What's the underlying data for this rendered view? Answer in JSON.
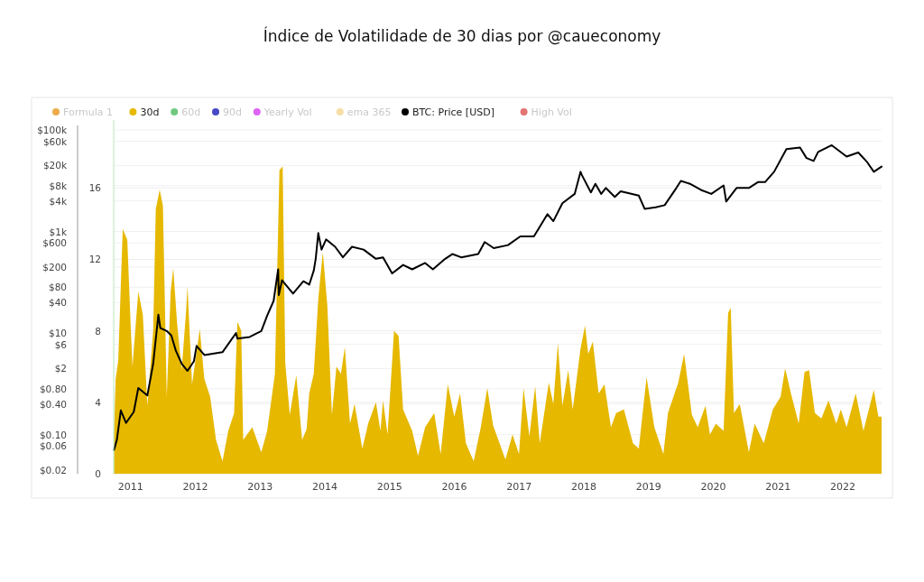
{
  "chart_data": {
    "type": "area",
    "title": "Índice de Volatilidade de 30 dias por @caueconomy",
    "xlim": [
      2010.74,
      2022.6
    ],
    "xticks": [
      2011,
      2012,
      2013,
      2014,
      2015,
      2016,
      2017,
      2018,
      2019,
      2020,
      2021,
      2022
    ],
    "ylim": [
      0,
      19.8
    ],
    "yticks": [
      0,
      4,
      8,
      12,
      16
    ],
    "y2lim": [
      0.017,
      157000
    ],
    "log": "y2",
    "y2ticks": [
      {
        "value": 0.02,
        "label": "$0.02"
      },
      {
        "value": 0.06,
        "label": "$0.06"
      },
      {
        "value": 0.1,
        "label": "$0.10"
      },
      {
        "value": 0.4,
        "label": "$0.40"
      },
      {
        "value": 0.8,
        "label": "$0.80"
      },
      {
        "value": 2,
        "label": "$2"
      },
      {
        "value": 6,
        "label": "$6"
      },
      {
        "value": 10,
        "label": "$10"
      },
      {
        "value": 40,
        "label": "$40"
      },
      {
        "value": 80,
        "label": "$80"
      },
      {
        "value": 200,
        "label": "$200"
      },
      {
        "value": 600,
        "label": "$600"
      },
      {
        "value": 1000,
        "label": "$1k"
      },
      {
        "value": 4000,
        "label": "$4k"
      },
      {
        "value": 8000,
        "label": "$8k"
      },
      {
        "value": 20000,
        "label": "$20k"
      },
      {
        "value": 60000,
        "label": "$60k"
      },
      {
        "value": 100000,
        "label": "$100k"
      }
    ],
    "grid": "y",
    "legend": "top left",
    "series": [
      {
        "name": "Formula 1",
        "color": "#e8961e"
      },
      {
        "name": "30d",
        "color": "#e6b800",
        "x": [
          2010.745,
          2010.77,
          2010.81,
          2010.88,
          2010.95,
          2011.0,
          2011.03,
          2011.12,
          2011.19,
          2011.26,
          2011.35,
          2011.39,
          2011.45,
          2011.5,
          2011.56,
          2011.62,
          2011.66,
          2011.72,
          2011.79,
          2011.86,
          2011.88,
          2011.95,
          2012.07,
          2012.14,
          2012.23,
          2012.32,
          2012.42,
          2012.51,
          2012.6,
          2012.65,
          2012.71,
          2012.74,
          2012.88,
          2013.02,
          2013.11,
          2013.23,
          2013.3,
          2013.35,
          2013.39,
          2013.46,
          2013.56,
          2013.65,
          2013.72,
          2013.76,
          2013.83,
          2013.9,
          2013.97,
          2014.04,
          2014.11,
          2014.18,
          2014.25,
          2014.31,
          2014.39,
          2014.46,
          2014.58,
          2014.67,
          2014.79,
          2014.86,
          2014.9,
          2014.97,
          2015.07,
          2015.14,
          2015.21,
          2015.35,
          2015.44,
          2015.55,
          2015.69,
          2015.79,
          2015.9,
          2016.0,
          2016.09,
          2016.18,
          2016.3,
          2016.41,
          2016.51,
          2016.6,
          2016.79,
          2016.9,
          2017.0,
          2017.07,
          2017.16,
          2017.25,
          2017.32,
          2017.46,
          2017.53,
          2017.6,
          2017.67,
          2017.76,
          2017.83,
          2017.95,
          2018.02,
          2018.07,
          2018.14,
          2018.23,
          2018.32,
          2018.42,
          2018.5,
          2018.62,
          2018.76,
          2018.85,
          2018.97,
          2019.09,
          2019.23,
          2019.3,
          2019.46,
          2019.55,
          2019.67,
          2019.76,
          2019.88,
          2019.95,
          2020.04,
          2020.16,
          2020.23,
          2020.27,
          2020.32,
          2020.41,
          2020.55,
          2020.64,
          2020.78,
          2020.92,
          2021.04,
          2021.11,
          2021.2,
          2021.32,
          2021.41,
          2021.48,
          2021.57,
          2021.67,
          2021.78,
          2021.9,
          2021.97,
          2022.06,
          2022.2,
          2022.32,
          2022.48,
          2022.55,
          2022.6
        ],
        "values": [
          2.2,
          5.3,
          6.3,
          13.7,
          13.1,
          8.5,
          6.0,
          10.2,
          8.9,
          3.8,
          8.0,
          14.8,
          15.9,
          15.0,
          4.3,
          10.2,
          11.5,
          8.4,
          5.8,
          9.2,
          10.5,
          5.0,
          8.1,
          5.3,
          4.3,
          1.9,
          0.7,
          2.4,
          3.4,
          8.5,
          8.0,
          1.9,
          2.6,
          1.2,
          2.4,
          5.6,
          17.0,
          17.2,
          6.2,
          3.3,
          5.5,
          1.9,
          2.5,
          4.5,
          5.6,
          9.8,
          12.4,
          9.4,
          3.3,
          6.0,
          5.6,
          7.1,
          2.8,
          3.9,
          1.4,
          2.8,
          4.0,
          2.4,
          4.1,
          2.2,
          8.0,
          7.7,
          3.6,
          2.4,
          1.0,
          2.6,
          3.4,
          1.1,
          5.0,
          3.2,
          4.5,
          1.7,
          0.7,
          2.6,
          4.8,
          2.7,
          0.8,
          2.2,
          1.1,
          4.8,
          2.1,
          4.9,
          1.7,
          5.1,
          3.9,
          7.3,
          3.8,
          5.8,
          3.6,
          7.0,
          8.3,
          6.7,
          7.4,
          4.5,
          5.0,
          2.6,
          3.4,
          3.6,
          1.7,
          1.4,
          5.4,
          2.6,
          1.1,
          3.4,
          5.1,
          6.7,
          3.3,
          2.6,
          3.8,
          2.2,
          2.8,
          2.4,
          9.0,
          9.3,
          3.4,
          3.9,
          1.2,
          2.8,
          1.7,
          3.6,
          4.3,
          5.9,
          4.5,
          2.8,
          5.7,
          5.8,
          3.4,
          3.1,
          4.1,
          2.8,
          3.6,
          2.6,
          4.5,
          2.4,
          4.7,
          3.2,
          3.2
        ]
      },
      {
        "name": "60d",
        "color": "#4cbb5e"
      },
      {
        "name": "90d",
        "color": "#1a1ab8"
      },
      {
        "name": "Yearly Vol",
        "color": "#d63cf0"
      },
      {
        "name": "ema 365",
        "color": "#f5d68f"
      },
      {
        "name": "BTC: Price [USD]",
        "color": "#000000",
        "type": "line",
        "axis": "y2",
        "x": [
          2010.745,
          2010.79,
          2010.85,
          2010.93,
          2011.05,
          2011.12,
          2011.26,
          2011.35,
          2011.43,
          2011.46,
          2011.56,
          2011.63,
          2011.7,
          2011.79,
          2011.88,
          2011.98,
          2012.02,
          2012.14,
          2012.42,
          2012.63,
          2012.65,
          2012.84,
          2013.02,
          2013.11,
          2013.21,
          2013.28,
          2013.29,
          2013.34,
          2013.51,
          2013.67,
          2013.76,
          2013.83,
          2013.86,
          2013.9,
          2013.95,
          2014.02,
          2014.16,
          2014.28,
          2014.42,
          2014.6,
          2014.79,
          2014.9,
          2015.04,
          2015.21,
          2015.35,
          2015.55,
          2015.67,
          2015.86,
          2015.97,
          2016.11,
          2016.37,
          2016.47,
          2016.61,
          2016.83,
          2017.02,
          2017.23,
          2017.44,
          2017.53,
          2017.67,
          2017.86,
          2017.95,
          2017.97,
          2018.11,
          2018.18,
          2018.27,
          2018.34,
          2018.48,
          2018.57,
          2018.85,
          2018.94,
          2019.11,
          2019.25,
          2019.43,
          2019.5,
          2019.64,
          2019.81,
          2019.97,
          2020.16,
          2020.2,
          2020.36,
          2020.55,
          2020.69,
          2020.8,
          2020.94,
          2021.13,
          2021.34,
          2021.44,
          2021.55,
          2021.62,
          2021.83,
          2022.06,
          2022.24,
          2022.38,
          2022.48,
          2022.6
        ],
        "values": [
          0.05,
          0.08,
          0.3,
          0.17,
          0.28,
          0.83,
          0.59,
          2.5,
          23,
          12.6,
          11,
          9,
          4.5,
          2.5,
          1.8,
          2.8,
          5.6,
          3.7,
          4.2,
          10,
          7.8,
          8.4,
          11,
          22,
          43,
          180,
          56,
          110,
          60,
          105,
          90,
          170,
          290,
          930,
          440,
          700,
          500,
          310,
          500,
          440,
          290,
          310,
          150,
          220,
          180,
          240,
          180,
          290,
          360,
          310,
          360,
          620,
          470,
          540,
          800,
          800,
          2200,
          1600,
          3600,
          5500,
          15000,
          13000,
          5900,
          8700,
          5500,
          7200,
          4800,
          6200,
          5100,
          2800,
          3000,
          3300,
          7200,
          9900,
          8700,
          6600,
          5500,
          8100,
          3900,
          7200,
          7200,
          9400,
          9400,
          15000,
          42000,
          45000,
          28000,
          24500,
          37000,
          50000,
          30000,
          36000,
          23000,
          15000,
          19000
        ]
      },
      {
        "name": "High Vol",
        "color": "#d9534f"
      }
    ]
  }
}
